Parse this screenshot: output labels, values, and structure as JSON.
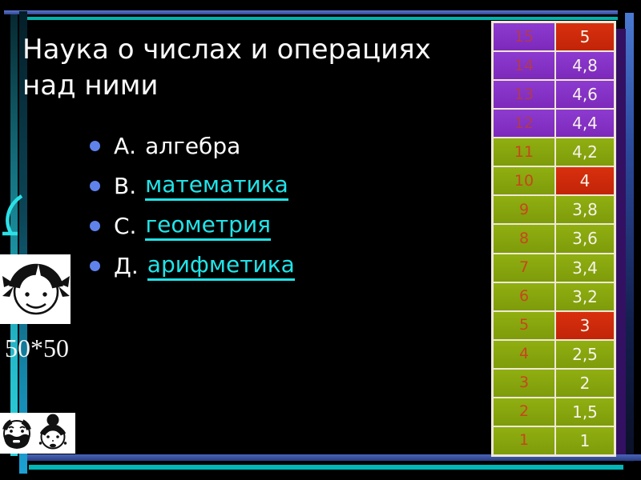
{
  "slide": {
    "title": "Наука о числах и операциях над ними",
    "options": [
      {
        "label": "А.",
        "text": "алгебра",
        "link": false
      },
      {
        "label": "В.",
        "text": "математика",
        "link": true
      },
      {
        "label": "С.",
        "text": "геометрия",
        "link": true
      },
      {
        "label": "Д.",
        "text": "арифметика",
        "link": true
      }
    ],
    "note": "50*50"
  },
  "score_table": {
    "rows": [
      {
        "num": "15",
        "value": "5",
        "num_bg": "purple",
        "value_bg": "red"
      },
      {
        "num": "14",
        "value": "4,8",
        "num_bg": "purple",
        "value_bg": "purple"
      },
      {
        "num": "13",
        "value": "4,6",
        "num_bg": "purple",
        "value_bg": "purple"
      },
      {
        "num": "12",
        "value": "4,4",
        "num_bg": "purple",
        "value_bg": "purple"
      },
      {
        "num": "11",
        "value": "4,2",
        "num_bg": "green",
        "value_bg": "green"
      },
      {
        "num": "10",
        "value": "4",
        "num_bg": "green",
        "value_bg": "red"
      },
      {
        "num": "9",
        "value": "3,8",
        "num_bg": "green",
        "value_bg": "green"
      },
      {
        "num": "8",
        "value": "3,6",
        "num_bg": "green",
        "value_bg": "green"
      },
      {
        "num": "7",
        "value": "3,4",
        "num_bg": "green",
        "value_bg": "green"
      },
      {
        "num": "6",
        "value": "3,2",
        "num_bg": "green",
        "value_bg": "green"
      },
      {
        "num": "5",
        "value": "3",
        "num_bg": "green",
        "value_bg": "red"
      },
      {
        "num": "4",
        "value": "2,5",
        "num_bg": "green",
        "value_bg": "green"
      },
      {
        "num": "3",
        "value": "2",
        "num_bg": "green",
        "value_bg": "green"
      },
      {
        "num": "2",
        "value": "1,5",
        "num_bg": "green",
        "value_bg": "green"
      },
      {
        "num": "1",
        "value": "1",
        "num_bg": "green",
        "value_bg": "green"
      }
    ]
  },
  "icons": {
    "girl": "girl-face-icon",
    "grandparents": "grandparents-faces-icon",
    "crescent": "cyan-crescent-mark"
  },
  "colors": {
    "bullet": "#5f82eb",
    "link": "#20e4e8",
    "purple": "#8433c8",
    "green": "#86a40d",
    "red": "#d2280a",
    "accent-teal": "#00b2ac",
    "accent-blue": "#4a66b8",
    "table-border": "#efe8d6",
    "value-text": "#f6f3ea",
    "num-on-purple": "#b03a52",
    "num-on-green": "#c8451e"
  }
}
